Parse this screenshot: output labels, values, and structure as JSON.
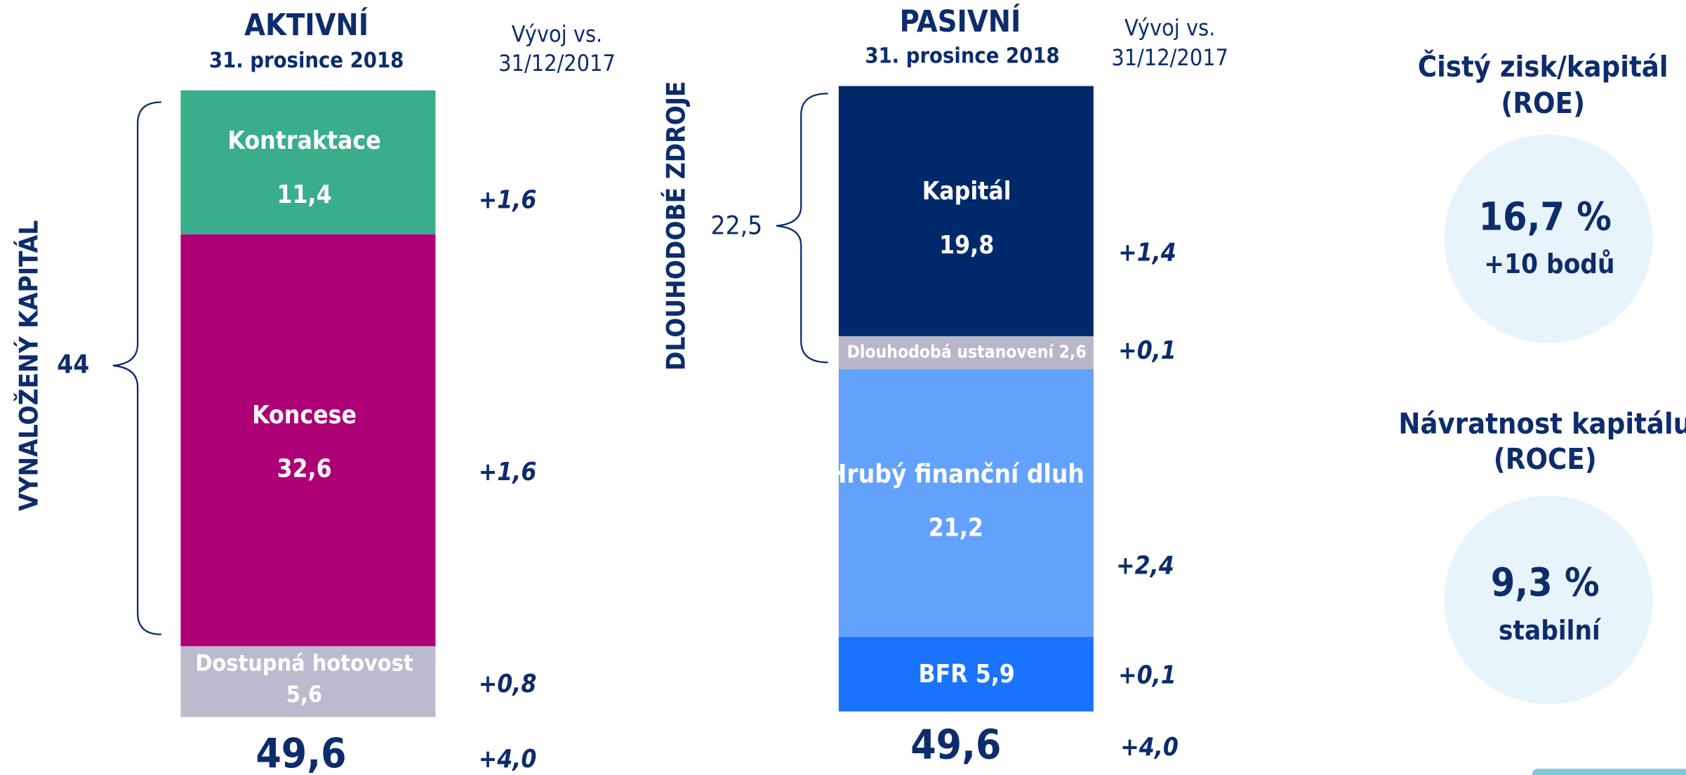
{
  "assets": {
    "title": "AKTIVNÍ",
    "date": "31. prosince 2018",
    "change_header": [
      "Vývoj vs.",
      "31/12/2017"
    ],
    "brace_label": "VYNALOŽENÝ KAPITÁL",
    "brace_value": "44",
    "segments": [
      {
        "name": "Kontraktace",
        "value": 11.4,
        "value_label": "11,4",
        "change": "+1,6",
        "color": "#3aad8b"
      },
      {
        "name": "Koncese",
        "value": 32.6,
        "value_label": "32,6",
        "change": "+1,6",
        "color": "#ad0077"
      },
      {
        "name": "Dostupná hotovost",
        "value": 5.6,
        "value_label": "5,6",
        "change": "+0,8",
        "color": "#bcbbce"
      }
    ],
    "total": "49,6",
    "total_change": "+4,0"
  },
  "liabilities": {
    "title": "PASIVNÍ",
    "date": "31. prosince 2018",
    "change_header": [
      "Vývoj vs.",
      "31/12/2017"
    ],
    "brace_label": "DLOUHODOBÉ ZDROJE",
    "brace_value": "22,5",
    "segments": [
      {
        "name": "Kapitál",
        "value": 19.8,
        "value_label": "19,8",
        "change": "+1,4",
        "color": "#00296b"
      },
      {
        "name": "Dlouhodobá ustanovení",
        "value": 2.6,
        "value_label": "2,6",
        "change": "+0,1",
        "color": "#b8b7c9"
      },
      {
        "name": "Hrubý finanční dluh",
        "value": 21.2,
        "value_label": "21,2",
        "change": "+2,4",
        "color": "#62a2fc"
      },
      {
        "name": "BFR",
        "value": 5.9,
        "value_label": "5,9",
        "change": "+0,1",
        "color": "#1a73fc"
      }
    ],
    "total": "49,6",
    "total_change": "+4,0"
  },
  "kpis": [
    {
      "title": [
        "Čistý zisk/kapitál",
        "(ROE)"
      ],
      "value": "16,7 %",
      "note": "+10 bodů"
    },
    {
      "title": [
        "Návratnost kapitálu",
        "(ROCE)"
      ],
      "value": "9,3 %",
      "note": "stabilní"
    }
  ]
}
